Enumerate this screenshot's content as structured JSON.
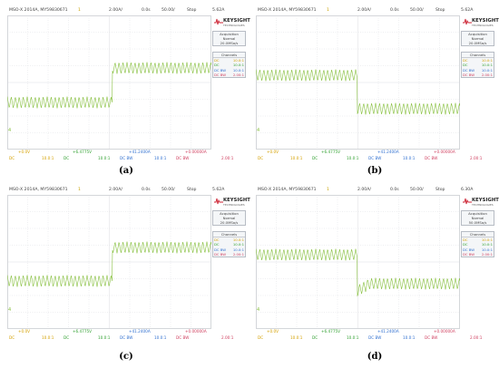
{
  "panels": [
    {
      "id": "a",
      "caption": "(a)",
      "model": "MSO-X 2014A, MY59830671",
      "ch_num": "1",
      "current_scale": "2.00A/",
      "time_offset": "0.0s",
      "time_scale": "50.00/",
      "run_state": "Stop",
      "trig_value": "5.62A",
      "acq_title": "Acquisition",
      "acq_mode": "Normal",
      "acq_rate": "20.0MSa/s",
      "channels_title": "Channels",
      "bottom": [
        "+0.0V",
        "+6.4775V",
        "+41.2400A",
        "+0.00000A"
      ],
      "bottom2": [
        "DC",
        "10.0:1",
        "DC",
        "10.0:1",
        "DC BW",
        "10.0:1",
        "DC BW",
        "2.00:1"
      ],
      "channels": [
        {
          "l": "DC",
          "r": "10.0:1"
        },
        {
          "l": "DC",
          "r": "10.0:1"
        },
        {
          "l": "DC BW",
          "r": "10.0:1"
        },
        {
          "l": "DC BW",
          "r": "2.00:1"
        }
      ]
    },
    {
      "id": "b",
      "caption": "(b)",
      "model": "MSO-X 2014A, MY59830671",
      "ch_num": "1",
      "current_scale": "2.00A/",
      "time_offset": "0.0s",
      "time_scale": "50.00/",
      "run_state": "Stop",
      "trig_value": "5.62A",
      "acq_title": "Acquisition",
      "acq_mode": "Normal",
      "acq_rate": "20.0MSa/s",
      "channels_title": "Channels",
      "bottom": [
        "+0.0V",
        "+6.4775V",
        "+41.2400A",
        "+0.00000A"
      ],
      "bottom2": [
        "DC",
        "10.0:1",
        "DC",
        "10.0:1",
        "DC BW",
        "10.0:1",
        "DC BW",
        "2.00:1"
      ],
      "channels": [
        {
          "l": "DC",
          "r": "10.0:1"
        },
        {
          "l": "DC",
          "r": "10.0:1"
        },
        {
          "l": "DC BW",
          "r": "10.0:1"
        },
        {
          "l": "DC BW",
          "r": "2.00:1"
        }
      ]
    },
    {
      "id": "c",
      "caption": "(c)",
      "model": "MSO-X 2014A, MY59830671",
      "ch_num": "1",
      "current_scale": "2.00A/",
      "time_offset": "0.0s",
      "time_scale": "50.00/",
      "run_state": "Stop",
      "trig_value": "5.62A",
      "acq_title": "Acquisition",
      "acq_mode": "Normal",
      "acq_rate": "20.0MSa/s",
      "channels_title": "Channels",
      "bottom": [
        "+0.0V",
        "+6.4775V",
        "+41.2400A",
        "+0.00000A"
      ],
      "bottom2": [
        "DC",
        "10.0:1",
        "DC",
        "10.0:1",
        "DC BW",
        "10.0:1",
        "DC BW",
        "2.00:1"
      ],
      "channels": [
        {
          "l": "DC",
          "r": "10.0:1"
        },
        {
          "l": "DC",
          "r": "10.0:1"
        },
        {
          "l": "DC BW",
          "r": "10.0:1"
        },
        {
          "l": "DC BW",
          "r": "2.00:1"
        }
      ]
    },
    {
      "id": "d",
      "caption": "(d)",
      "model": "MSO-X 2014A, MY59830671",
      "ch_num": "1",
      "current_scale": "2.00A/",
      "time_offset": "0.0s",
      "time_scale": "50.00/",
      "run_state": "Stop",
      "trig_value": "6.30A",
      "acq_title": "Acquisition",
      "acq_mode": "Normal",
      "acq_rate": "50.0MSa/s",
      "channels_title": "Channels",
      "bottom": [
        "+0.0V",
        "+6.4775V",
        "+41.2400A",
        "+0.00000A"
      ],
      "bottom2": [
        "DC",
        "10.0:1",
        "DC",
        "10.0:1",
        "DC BW",
        "10.0:1",
        "DC BW",
        "2.00:1"
      ],
      "channels": [
        {
          "l": "DC",
          "r": "10.0:1"
        },
        {
          "l": "DC",
          "r": "10.0:1"
        },
        {
          "l": "DC BW",
          "r": "10.0:1"
        },
        {
          "l": "DC BW",
          "r": "2.00:1"
        }
      ]
    }
  ],
  "brand": {
    "name": "KEYSIGHT",
    "sub": "TECHNOLOGIES",
    "color": "#cc2030"
  },
  "colors": {
    "trace": "#88c040",
    "grid": "#d4d6da",
    "ch1": "#d4a000",
    "ch2": "#30a030",
    "ch3": "#3070d0",
    "ch4": "#d04060"
  }
}
